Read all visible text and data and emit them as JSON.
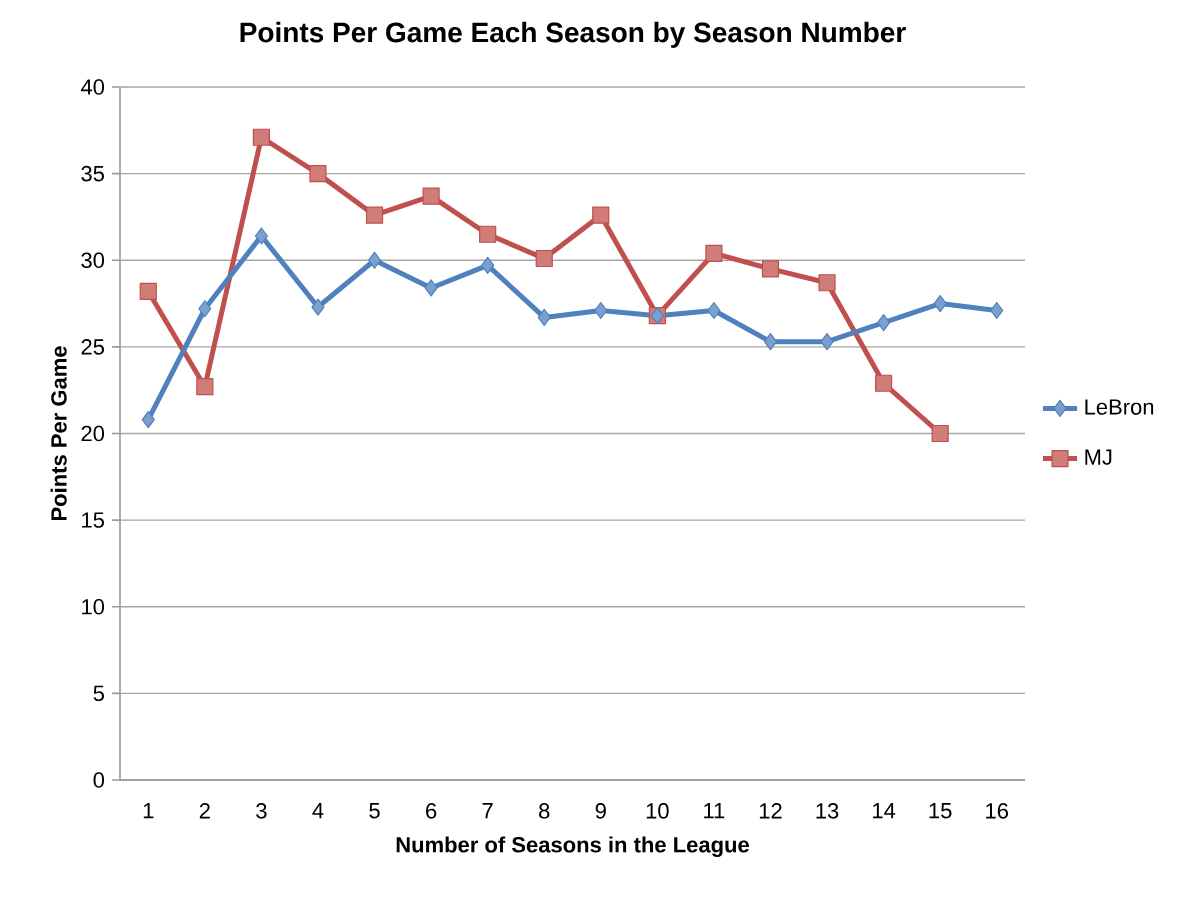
{
  "chart_data": {
    "type": "line",
    "title": "Points Per Game Each Season by Season Number",
    "xlabel": "Number of Seasons in the League",
    "ylabel": "Points Per Game",
    "categories": [
      "1",
      "2",
      "3",
      "4",
      "5",
      "6",
      "7",
      "8",
      "9",
      "10",
      "11",
      "12",
      "13",
      "14",
      "15",
      "16"
    ],
    "series": [
      {
        "name": "LeBron",
        "color": "#4f81bd",
        "marker": "diamond",
        "values": [
          20.8,
          27.2,
          31.4,
          27.3,
          30.0,
          28.4,
          29.7,
          26.7,
          27.1,
          26.8,
          27.1,
          25.3,
          25.3,
          26.4,
          27.5,
          27.1
        ]
      },
      {
        "name": "MJ",
        "color": "#c0504d",
        "marker": "square",
        "values": [
          28.2,
          22.7,
          37.1,
          35.0,
          32.6,
          33.7,
          31.5,
          30.1,
          32.6,
          26.8,
          30.4,
          29.5,
          28.7,
          22.9,
          20.0,
          null
        ]
      }
    ],
    "ylim": [
      0,
      40
    ],
    "yticks": [
      0,
      5,
      10,
      15,
      20,
      25,
      30,
      35,
      40
    ],
    "grid": "y",
    "legend": "right",
    "line_style": "solid"
  }
}
